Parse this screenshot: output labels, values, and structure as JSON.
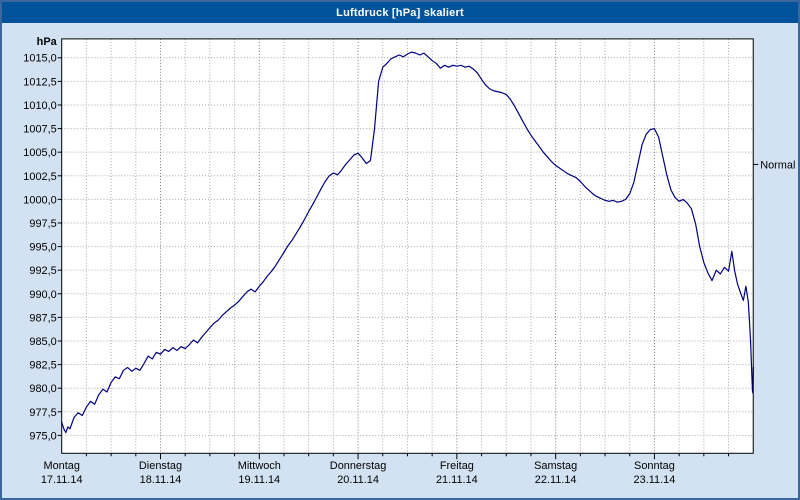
{
  "window": {
    "title": "Luftdruck [hPa] skaliert"
  },
  "colors": {
    "titlebar_bg": "#00529b",
    "frame_bg": "#d2e2f2",
    "plot_bg": "#ffffff",
    "plot_border": "#000000",
    "grid_minor": "#a8a8a8",
    "grid_major": "#7a7a7a",
    "line": "#000080",
    "text": "#000000"
  },
  "chart_data": {
    "type": "line",
    "title": "Luftdruck [hPa] skaliert",
    "y_unit_label": "hPa",
    "ylim": [
      973.0,
      1017.0
    ],
    "grid": true,
    "hours_total": 168,
    "x_tick_interval_hours": 6,
    "y_ticks": [
      1015.0,
      1012.5,
      1010.0,
      1007.5,
      1005.0,
      1002.5,
      1000.0,
      997.5,
      995.0,
      992.5,
      990.0,
      987.5,
      985.0,
      982.5,
      980.0,
      977.5,
      975.0
    ],
    "y_tick_labels": [
      "1015,0",
      "1012,5",
      "1010,0",
      "1007,5",
      "1005,0",
      "1002,5",
      "1000,0",
      "997,5",
      "995,0",
      "992,5",
      "990,0",
      "987,5",
      "985,0",
      "982,5",
      "980,0",
      "977,5",
      "975,0"
    ],
    "x_days": [
      {
        "name": "Montag",
        "date": "17.11.14"
      },
      {
        "name": "Dienstag",
        "date": "18.11.14"
      },
      {
        "name": "Mittwoch",
        "date": "19.11.14"
      },
      {
        "name": "Donnerstag",
        "date": "20.11.14"
      },
      {
        "name": "Freitag",
        "date": "21.11.14"
      },
      {
        "name": "Samstag",
        "date": "22.11.14"
      },
      {
        "name": "Sonntag",
        "date": "23.11.14"
      }
    ],
    "normal_marker": {
      "label": "Normal",
      "value_hpa": 1003.7
    },
    "series": [
      {
        "name": "Luftdruck",
        "points": [
          [
            0,
            976.4
          ],
          [
            0.5,
            975.7
          ],
          [
            1,
            975.3
          ],
          [
            1.5,
            975.9
          ],
          [
            2,
            975.7
          ],
          [
            3,
            976.9
          ],
          [
            4,
            977.4
          ],
          [
            5,
            977.1
          ],
          [
            6,
            978.0
          ],
          [
            7,
            978.6
          ],
          [
            8,
            978.3
          ],
          [
            9,
            979.3
          ],
          [
            10,
            979.9
          ],
          [
            11,
            979.6
          ],
          [
            12,
            980.6
          ],
          [
            13,
            981.2
          ],
          [
            14,
            981.0
          ],
          [
            15,
            981.9
          ],
          [
            16,
            982.2
          ],
          [
            17,
            981.8
          ],
          [
            18,
            982.1
          ],
          [
            19,
            981.9
          ],
          [
            20,
            982.6
          ],
          [
            21,
            983.4
          ],
          [
            22,
            983.1
          ],
          [
            23,
            983.8
          ],
          [
            24,
            983.6
          ],
          [
            25,
            984.1
          ],
          [
            26,
            983.9
          ],
          [
            27,
            984.3
          ],
          [
            28,
            984.0
          ],
          [
            29,
            984.4
          ],
          [
            30,
            984.2
          ],
          [
            31,
            984.6
          ],
          [
            32,
            985.1
          ],
          [
            33,
            984.8
          ],
          [
            34,
            985.4
          ],
          [
            35,
            985.9
          ],
          [
            36,
            986.4
          ],
          [
            37,
            986.9
          ],
          [
            38,
            987.2
          ],
          [
            39,
            987.7
          ],
          [
            40,
            988.1
          ],
          [
            41,
            988.5
          ],
          [
            42,
            988.8
          ],
          [
            43,
            989.2
          ],
          [
            44,
            989.7
          ],
          [
            45,
            990.2
          ],
          [
            46,
            990.5
          ],
          [
            47,
            990.2
          ],
          [
            48,
            990.8
          ],
          [
            49,
            991.3
          ],
          [
            50,
            991.9
          ],
          [
            51,
            992.4
          ],
          [
            52,
            993.0
          ],
          [
            53,
            993.7
          ],
          [
            54,
            994.4
          ],
          [
            55,
            995.1
          ],
          [
            56,
            995.7
          ],
          [
            57,
            996.4
          ],
          [
            58,
            997.1
          ],
          [
            59,
            997.9
          ],
          [
            60,
            998.7
          ],
          [
            61,
            999.5
          ],
          [
            62,
            1000.3
          ],
          [
            63,
            1001.1
          ],
          [
            64,
            1001.9
          ],
          [
            65,
            1002.5
          ],
          [
            66,
            1002.8
          ],
          [
            67,
            1002.6
          ],
          [
            68,
            1003.1
          ],
          [
            69,
            1003.7
          ],
          [
            70,
            1004.2
          ],
          [
            71,
            1004.7
          ],
          [
            72,
            1004.9
          ],
          [
            73,
            1004.4
          ],
          [
            74,
            1003.8
          ],
          [
            75,
            1004.1
          ],
          [
            76,
            1007.5
          ],
          [
            77,
            1012.5
          ],
          [
            78,
            1014.0
          ],
          [
            79,
            1014.4
          ],
          [
            80,
            1014.9
          ],
          [
            81,
            1015.1
          ],
          [
            82,
            1015.3
          ],
          [
            83,
            1015.1
          ],
          [
            84,
            1015.4
          ],
          [
            85,
            1015.6
          ],
          [
            86,
            1015.5
          ],
          [
            87,
            1015.3
          ],
          [
            88,
            1015.5
          ],
          [
            89,
            1015.1
          ],
          [
            90,
            1014.7
          ],
          [
            91,
            1014.4
          ],
          [
            92,
            1013.9
          ],
          [
            93,
            1014.2
          ],
          [
            94,
            1014.0
          ],
          [
            95,
            1014.2
          ],
          [
            96,
            1014.1
          ],
          [
            97,
            1014.2
          ],
          [
            98,
            1014.0
          ],
          [
            99,
            1014.1
          ],
          [
            100,
            1013.8
          ],
          [
            101,
            1013.4
          ],
          [
            102,
            1012.7
          ],
          [
            103,
            1012.1
          ],
          [
            104,
            1011.7
          ],
          [
            105,
            1011.5
          ],
          [
            106,
            1011.4
          ],
          [
            107,
            1011.3
          ],
          [
            108,
            1011.1
          ],
          [
            109,
            1010.6
          ],
          [
            110,
            1009.9
          ],
          [
            111,
            1009.1
          ],
          [
            112,
            1008.3
          ],
          [
            113,
            1007.5
          ],
          [
            114,
            1006.8
          ],
          [
            115,
            1006.2
          ],
          [
            116,
            1005.6
          ],
          [
            117,
            1005.0
          ],
          [
            118,
            1004.5
          ],
          [
            119,
            1004.0
          ],
          [
            120,
            1003.6
          ],
          [
            121,
            1003.3
          ],
          [
            122,
            1003.0
          ],
          [
            123,
            1002.7
          ],
          [
            124,
            1002.5
          ],
          [
            125,
            1002.3
          ],
          [
            126,
            1001.9
          ],
          [
            127,
            1001.4
          ],
          [
            128,
            1001.0
          ],
          [
            129,
            1000.6
          ],
          [
            130,
            1000.3
          ],
          [
            131,
            1000.1
          ],
          [
            132,
            999.9
          ],
          [
            133,
            999.8
          ],
          [
            134,
            999.9
          ],
          [
            135,
            999.7
          ],
          [
            136,
            999.8
          ],
          [
            137,
            1000.0
          ],
          [
            138,
            1000.6
          ],
          [
            139,
            1001.8
          ],
          [
            140,
            1003.8
          ],
          [
            141,
            1005.8
          ],
          [
            142,
            1006.9
          ],
          [
            143,
            1007.4
          ],
          [
            144,
            1007.5
          ],
          [
            145,
            1006.6
          ],
          [
            146,
            1004.6
          ],
          [
            147,
            1002.6
          ],
          [
            148,
            1001.0
          ],
          [
            149,
            1000.2
          ],
          [
            150,
            999.8
          ],
          [
            151,
            1000.0
          ],
          [
            152,
            999.6
          ],
          [
            153,
            999.0
          ],
          [
            154,
            997.4
          ],
          [
            155,
            995.0
          ],
          [
            156,
            993.3
          ],
          [
            157,
            992.2
          ],
          [
            158,
            991.4
          ],
          [
            159,
            992.5
          ],
          [
            160,
            992.1
          ],
          [
            161,
            992.8
          ],
          [
            162,
            992.4
          ],
          [
            162.8,
            994.5
          ],
          [
            163.5,
            992.4
          ],
          [
            164.2,
            991.0
          ],
          [
            165,
            990.0
          ],
          [
            165.6,
            989.3
          ],
          [
            166.2,
            990.8
          ],
          [
            166.8,
            989.2
          ],
          [
            167.1,
            987.0
          ],
          [
            167.4,
            984.6
          ],
          [
            167.6,
            982.2
          ],
          [
            167.8,
            979.8
          ],
          [
            167.9,
            979.5
          ],
          [
            168,
            982.2
          ]
        ]
      }
    ]
  }
}
